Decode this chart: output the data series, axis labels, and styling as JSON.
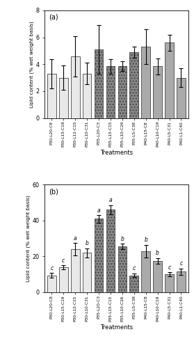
{
  "categories": [
    "P30-L20-C8",
    "P30-L15-C19",
    "P30-L12-C15",
    "P30-L10-C31",
    "P35-L20-C3",
    "P35-L15-C15",
    "P35-L10-C26",
    "P35-L5-C38",
    "P40-L15-C8",
    "P40-L10-C19",
    "P40-L5-C31",
    "P40-L1-C40"
  ],
  "panel_a": {
    "values": [
      3.3,
      3.0,
      4.6,
      3.3,
      5.1,
      3.85,
      3.85,
      4.9,
      5.3,
      3.85,
      5.6,
      3.0
    ],
    "errors": [
      1.1,
      0.9,
      1.5,
      0.8,
      1.8,
      0.55,
      0.35,
      0.4,
      1.3,
      0.6,
      0.6,
      0.7
    ],
    "ylabel": "Lipid content (% wet weight basis)",
    "ylim": [
      0,
      8
    ],
    "yticks": [
      0,
      2,
      4,
      6,
      8
    ],
    "label": "(a)"
  },
  "panel_b": {
    "values": [
      9.5,
      14.0,
      24.0,
      22.0,
      41.0,
      46.0,
      25.5,
      9.5,
      23.0,
      17.5,
      10.0,
      11.5
    ],
    "errors": [
      1.2,
      1.0,
      3.5,
      2.5,
      2.0,
      2.5,
      1.5,
      1.0,
      3.5,
      1.5,
      1.2,
      1.8
    ],
    "sig_labels": [
      "c",
      "c",
      "a",
      "b",
      "a",
      "a",
      "b",
      "c",
      "b",
      "b",
      "c",
      "c"
    ],
    "ylabel": "Lipid content (% wet weight basis)",
    "ylim": [
      0,
      60
    ],
    "yticks": [
      0,
      20,
      40,
      60
    ],
    "label": "(b)"
  },
  "face_colors": [
    "#e8e8e8",
    "#e8e8e8",
    "#e8e8e8",
    "#e8e8e8",
    "#888888",
    "#888888",
    "#888888",
    "#888888",
    "#aaaaaa",
    "#aaaaaa",
    "#aaaaaa",
    "#aaaaaa"
  ],
  "hatches": [
    "",
    "",
    "",
    "",
    "....",
    "....",
    "....",
    "....",
    "",
    "",
    "",
    ""
  ]
}
